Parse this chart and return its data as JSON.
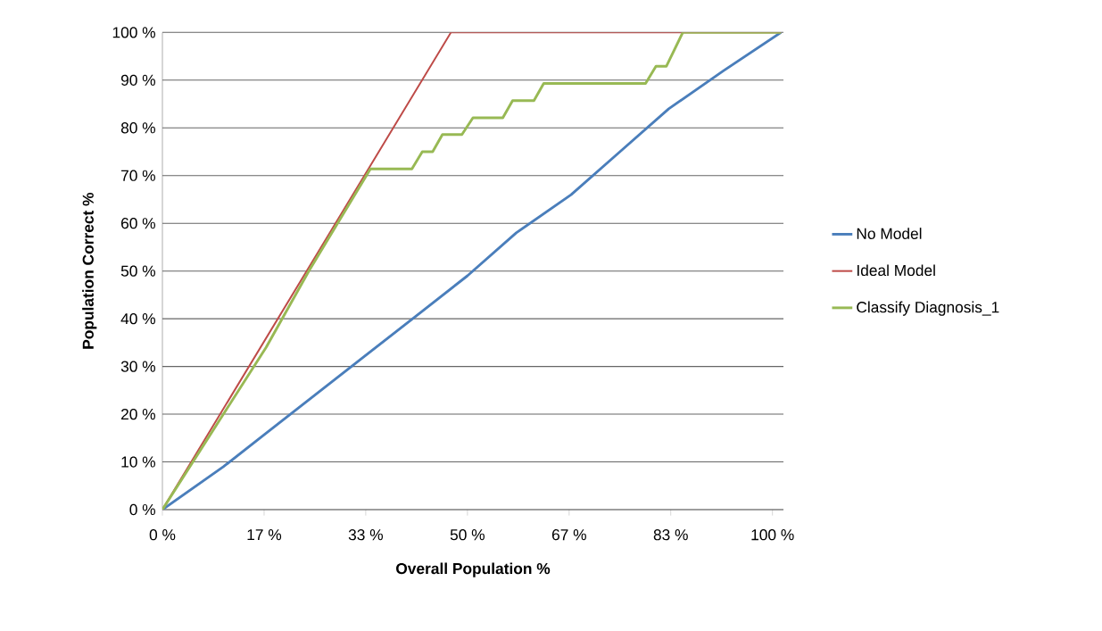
{
  "chart_data": {
    "type": "line",
    "xlabel": "Overall Population %",
    "ylabel": "Population Correct %",
    "xlim": [
      0,
      101.8
    ],
    "ylim": [
      0,
      100
    ],
    "xticks": [
      {
        "value": 0,
        "label": "0 %"
      },
      {
        "value": 16.67,
        "label": "17 %"
      },
      {
        "value": 33.33,
        "label": "33 %"
      },
      {
        "value": 50,
        "label": "50 %"
      },
      {
        "value": 66.67,
        "label": "67 %"
      },
      {
        "value": 83.33,
        "label": "83 %"
      },
      {
        "value": 100,
        "label": "100 %"
      }
    ],
    "yticks": [
      {
        "value": 0,
        "label": "0 %"
      },
      {
        "value": 10,
        "label": "10 %"
      },
      {
        "value": 20,
        "label": "20 %"
      },
      {
        "value": 30,
        "label": "30 %"
      },
      {
        "value": 40,
        "label": "40 %"
      },
      {
        "value": 50,
        "label": "50 %"
      },
      {
        "value": 60,
        "label": "60 %"
      },
      {
        "value": 70,
        "label": "70 %"
      },
      {
        "value": 80,
        "label": "80 %"
      },
      {
        "value": 90,
        "label": "90 %"
      },
      {
        "value": 100,
        "label": "100 %"
      }
    ],
    "grid": "y",
    "legend": "right",
    "series": [
      {
        "name": "No Model",
        "color": "#4a7ebb",
        "x": [
          0,
          10,
          17,
          25,
          33,
          42,
          50,
          58,
          67,
          75,
          83,
          92,
          101.4
        ],
        "values": [
          0,
          9,
          16,
          24,
          32,
          41,
          49,
          58,
          66,
          75,
          84,
          92,
          100
        ]
      },
      {
        "name": "Ideal Model",
        "color": "#be4b48",
        "x": [
          0,
          47.3,
          101.4
        ],
        "values": [
          0,
          100,
          100
        ]
      },
      {
        "name": "Classify Diagnosis_1",
        "color": "#98b954",
        "x": [
          0,
          10,
          17,
          24,
          34.1,
          40.9,
          42.6,
          44.3,
          45.9,
          49.1,
          50.9,
          55.8,
          57.4,
          60.9,
          62.5,
          79.2,
          80.9,
          82.6,
          85.3,
          101.4
        ],
        "values": [
          0,
          20,
          34,
          50,
          71.4,
          71.4,
          75,
          75,
          78.6,
          78.6,
          82.1,
          82.1,
          85.7,
          85.7,
          89.3,
          89.3,
          92.9,
          92.9,
          100,
          100
        ]
      }
    ]
  }
}
